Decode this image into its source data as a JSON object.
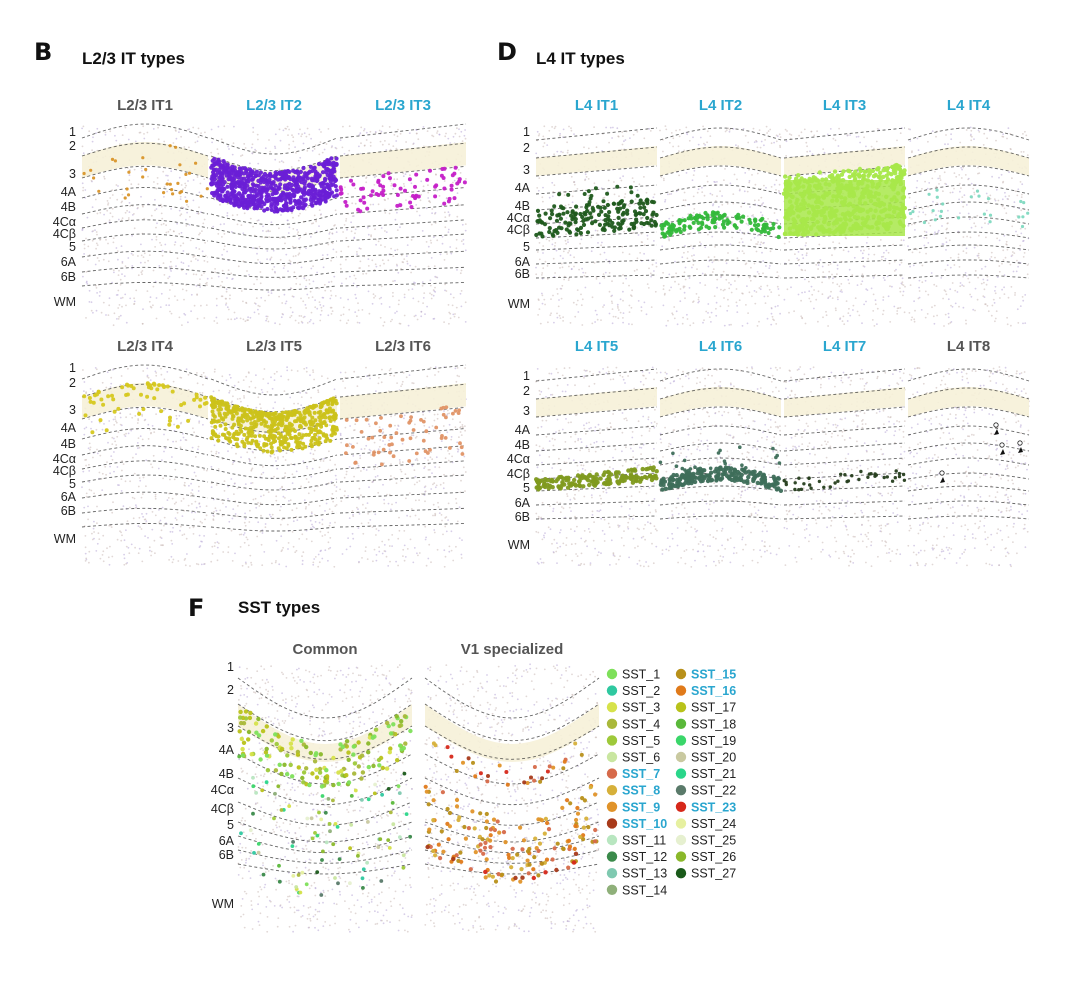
{
  "colors": {
    "highlight": "#2aa6cf",
    "normal": "#555555",
    "background_dot": "#c9b8b4",
    "background_purple": "#b7a6d6",
    "layer2_band": "#f6f1d8"
  },
  "panels": {
    "B": {
      "letter": "B",
      "title": "L2/3 IT types",
      "cells": [
        {
          "label": "L2/3 IT1",
          "highlight": false,
          "color": "#d9952a",
          "layer": "l23_sparse",
          "density": 30
        },
        {
          "label": "L2/3 IT2",
          "highlight": true,
          "color": "#6a1fd6",
          "layer": "l3_dense",
          "density": 700
        },
        {
          "label": "L2/3 IT3",
          "highlight": true,
          "color": "#c51fc8",
          "layer": "l3_mid",
          "density": 70
        },
        {
          "label": "L2/3 IT4",
          "highlight": false,
          "color": "#d6c81f",
          "layer": "l2_sparse",
          "density": 60
        },
        {
          "label": "L2/3 IT5",
          "highlight": false,
          "color": "#cbc21a",
          "layer": "l2_dense",
          "density": 500
        },
        {
          "label": "L2/3 IT6",
          "highlight": false,
          "color": "#e09366",
          "layer": "l3_sparse",
          "density": 60
        }
      ]
    },
    "D": {
      "letter": "D",
      "title": "L4 IT types",
      "cells": [
        {
          "label": "L4 IT1",
          "highlight": true,
          "color": "#1f5a1c",
          "layer": "l4ca",
          "density": 180
        },
        {
          "label": "L4 IT2",
          "highlight": true,
          "color": "#33b83a",
          "layer": "l4ca_low",
          "density": 120
        },
        {
          "label": "L4 IT3",
          "highlight": true,
          "color": "#a8e84a",
          "layer": "l4_dense",
          "density": 900
        },
        {
          "label": "L4 IT4",
          "highlight": true,
          "color": "#7fd9c0",
          "layer": "l4_sparse",
          "density": 25
        },
        {
          "label": "L4 IT5",
          "highlight": true,
          "color": "#7f9a1f",
          "layer": "l4cb",
          "density": 160
        },
        {
          "label": "L4 IT6",
          "highlight": true,
          "color": "#3e6e5a",
          "layer": "l4cb_mixed",
          "density": 220
        },
        {
          "label": "L4 IT7",
          "highlight": true,
          "color": "#253d1c",
          "layer": "l4cb_sparse",
          "density": 40
        },
        {
          "label": "L4 IT8",
          "highlight": false,
          "color": "#e6d21f",
          "layer": "arrows",
          "density": 5
        }
      ]
    },
    "F": {
      "letter": "F",
      "title": "SST types",
      "cells": [
        {
          "label": "Common",
          "color_mode": "common"
        },
        {
          "label": "V1 specialized",
          "color_mode": "v1"
        }
      ]
    }
  },
  "layers_top": [
    "1",
    "2",
    "3",
    "4A",
    "4B",
    "4Cα",
    "4Cβ",
    "5",
    "6A",
    "6B",
    "WM"
  ],
  "legend": {
    "col1": [
      {
        "name": "SST_1",
        "color": "#7ee05a",
        "highlight": false
      },
      {
        "name": "SST_2",
        "color": "#2fc8a0",
        "highlight": false
      },
      {
        "name": "SST_3",
        "color": "#d6e24a",
        "highlight": false
      },
      {
        "name": "SST_4",
        "color": "#a9b83a",
        "highlight": false
      },
      {
        "name": "SST_5",
        "color": "#9ec93a",
        "highlight": false
      },
      {
        "name": "SST_6",
        "color": "#c9e6a0",
        "highlight": false
      },
      {
        "name": "SST_7",
        "color": "#d66a4a",
        "highlight": true
      },
      {
        "name": "SST_8",
        "color": "#d6b03a",
        "highlight": true
      },
      {
        "name": "SST_9",
        "color": "#e0932a",
        "highlight": true
      },
      {
        "name": "SST_10",
        "color": "#a83a1a",
        "highlight": true
      },
      {
        "name": "SST_11",
        "color": "#b8e6c0",
        "highlight": false
      },
      {
        "name": "SST_12",
        "color": "#3a8a4a",
        "highlight": false
      },
      {
        "name": "SST_13",
        "color": "#7fc9b0",
        "highlight": false
      },
      {
        "name": "SST_14",
        "color": "#8fb07a",
        "highlight": false
      }
    ],
    "col2": [
      {
        "name": "SST_15",
        "color": "#b8901a",
        "highlight": true
      },
      {
        "name": "SST_16",
        "color": "#e07a1a",
        "highlight": true
      },
      {
        "name": "SST_17",
        "color": "#b8c21a",
        "highlight": false
      },
      {
        "name": "SST_18",
        "color": "#5ab83a",
        "highlight": false
      },
      {
        "name": "SST_19",
        "color": "#3ad66a",
        "highlight": false
      },
      {
        "name": "SST_20",
        "color": "#c9c9a0",
        "highlight": false
      },
      {
        "name": "SST_21",
        "color": "#2ad68a",
        "highlight": false
      },
      {
        "name": "SST_22",
        "color": "#5a7a6a",
        "highlight": false
      },
      {
        "name": "SST_23",
        "color": "#d6281a",
        "highlight": true
      },
      {
        "name": "SST_24",
        "color": "#e6f0a0",
        "highlight": false
      },
      {
        "name": "SST_25",
        "color": "#e6f0d0",
        "highlight": false
      },
      {
        "name": "SST_26",
        "color": "#8ab82a",
        "highlight": false
      },
      {
        "name": "SST_27",
        "color": "#1a5a1a",
        "highlight": false
      }
    ]
  }
}
